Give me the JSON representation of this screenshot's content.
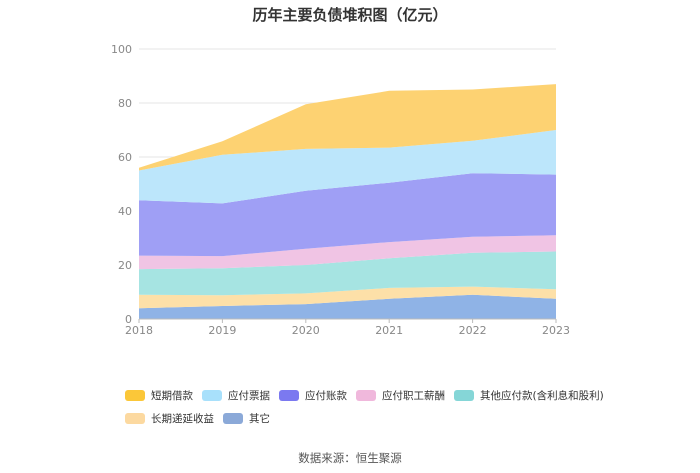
{
  "chart_data": {
    "type": "area",
    "stacked": true,
    "title": "历年主要负债堆积图（亿元）",
    "x": [
      "2018",
      "2019",
      "2020",
      "2021",
      "2022",
      "2023"
    ],
    "ylim": [
      0,
      100
    ],
    "yticks": [
      "0",
      "20",
      "40",
      "60",
      "80",
      "100"
    ],
    "grid": true,
    "legend_position": "bottom",
    "series": [
      {
        "name": "其它",
        "color": "#8fb3e6",
        "values": [
          4.0,
          4.8,
          5.5,
          7.5,
          9.0,
          7.5
        ]
      },
      {
        "name": "长期递延收益",
        "color": "#fde0a8",
        "values": [
          5.0,
          4.0,
          4.0,
          4.0,
          3.0,
          3.5
        ]
      },
      {
        "name": "其他应付款(含利息和股利)",
        "color": "#a6e4e2",
        "values": [
          9.5,
          10.0,
          10.5,
          11.0,
          12.5,
          14.0
        ]
      },
      {
        "name": "应付职工薪酬",
        "color": "#f0c4e4",
        "values": [
          5.0,
          4.5,
          6.0,
          6.0,
          6.0,
          6.0
        ]
      },
      {
        "name": "应付账款",
        "color": "#9f9ff5",
        "values": [
          20.5,
          19.5,
          21.5,
          22.0,
          23.5,
          22.5
        ]
      },
      {
        "name": "应付票据",
        "color": "#bce6fb",
        "values": [
          11.0,
          18.0,
          15.5,
          13.0,
          12.0,
          16.5
        ]
      },
      {
        "name": "短期借款",
        "color": "#fdd272",
        "values": [
          1.0,
          5.0,
          16.5,
          21.0,
          19.0,
          17.0
        ]
      }
    ]
  },
  "legend": {
    "row1": [
      "短期借款",
      "应付票据",
      "应付账款",
      "应付职工薪酬",
      "其他应付款(含利息和股利)"
    ],
    "row2": [
      "长期递延收益",
      "其它"
    ],
    "colors": {
      "短期借款": "#fbc739",
      "应付票据": "#a8e0fb",
      "应付账款": "#7b79f0",
      "应付职工薪酬": "#f0b8dc",
      "其他应付款(含利息和股利)": "#85d6d7",
      "长期递延收益": "#fcd9a0",
      "其它": "#8ba9d8"
    }
  },
  "source": "数据来源：恒生聚源"
}
